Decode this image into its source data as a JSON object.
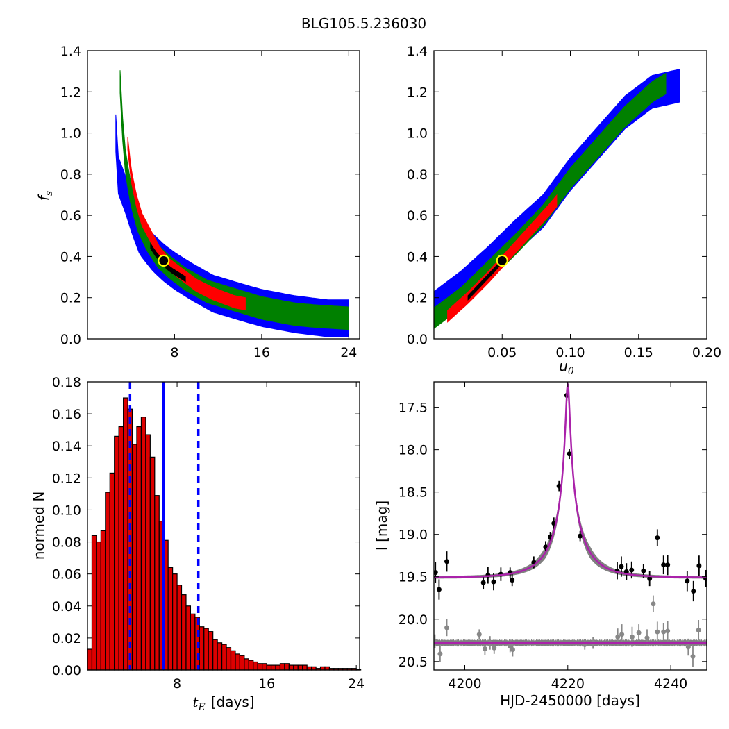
{
  "figure": {
    "title": "BLG105.5.236030"
  },
  "colors": {
    "black_level": "#000000",
    "red_level": "#ff0000",
    "green_level": "#008000",
    "blue_level": "#0000ff",
    "marker_fill": "#000000",
    "marker_edge": "#ffff00",
    "hist_bar": "#dd0000",
    "median_line": "#0000ff",
    "model_line": "#aa22aa",
    "data_primary": "#000000",
    "data_secondary": "#888888",
    "model_band": "#808080"
  },
  "chart_data": [
    {
      "id": "tE_vs_fs",
      "type": "heatmap",
      "xlabel": "",
      "ylabel": "f_s",
      "xlim": [
        0,
        25
      ],
      "ylim": [
        0.0,
        1.4
      ],
      "xticks": [
        "8",
        "16",
        "24"
      ],
      "xtick_values": [
        8,
        16,
        24
      ],
      "yticks": [
        "0.0",
        "0.2",
        "0.4",
        "0.6",
        "0.8",
        "1.0",
        "1.2",
        "1.4"
      ],
      "ytick_values": [
        0.0,
        0.2,
        0.4,
        0.6,
        0.8,
        1.0,
        1.2,
        1.4
      ],
      "best_fit": {
        "x": 7.0,
        "y": 0.38
      },
      "levels": [
        {
          "name": "blue",
          "points": [
            [
              2.6,
              1.0
            ],
            [
              2.8,
              0.8
            ],
            [
              3.5,
              0.7
            ],
            [
              4.1,
              0.6
            ],
            [
              4.8,
              0.5
            ],
            [
              6.0,
              0.42
            ],
            [
              7.0,
              0.37
            ],
            [
              8.0,
              0.33
            ],
            [
              9.5,
              0.28
            ],
            [
              11.5,
              0.22
            ],
            [
              14.0,
              0.18
            ],
            [
              16.0,
              0.15
            ],
            [
              19.0,
              0.12
            ],
            [
              22.0,
              0.1
            ],
            [
              24.0,
              0.1
            ]
          ],
          "width": 0.09
        },
        {
          "name": "green",
          "points": [
            [
              3.0,
              1.25
            ],
            [
              3.1,
              1.1
            ],
            [
              3.5,
              0.85
            ],
            [
              4.0,
              0.7
            ],
            [
              4.6,
              0.58
            ],
            [
              5.5,
              0.48
            ],
            [
              6.5,
              0.4
            ],
            [
              7.5,
              0.35
            ],
            [
              9.0,
              0.29
            ],
            [
              11.0,
              0.23
            ],
            [
              13.5,
              0.19
            ],
            [
              16.0,
              0.15
            ],
            [
              19.0,
              0.12
            ],
            [
              21.0,
              0.11
            ],
            [
              24.0,
              0.1
            ]
          ],
          "width": 0.055
        },
        {
          "name": "red",
          "points": [
            [
              3.7,
              0.95
            ],
            [
              4.0,
              0.8
            ],
            [
              4.5,
              0.67
            ],
            [
              5.0,
              0.58
            ],
            [
              5.8,
              0.5
            ],
            [
              6.6,
              0.42
            ],
            [
              7.5,
              0.36
            ],
            [
              8.5,
              0.32
            ],
            [
              10.0,
              0.26
            ],
            [
              11.5,
              0.22
            ],
            [
              13.5,
              0.18
            ],
            [
              14.5,
              0.17
            ]
          ],
          "width": 0.03
        },
        {
          "name": "black",
          "points": [
            [
              5.8,
              0.45
            ],
            [
              6.3,
              0.41
            ],
            [
              6.8,
              0.38
            ],
            [
              7.3,
              0.35
            ],
            [
              7.8,
              0.33
            ],
            [
              8.4,
              0.31
            ],
            [
              9.0,
              0.29
            ]
          ],
          "width": 0.012
        }
      ]
    },
    {
      "id": "u0_vs_fs",
      "type": "heatmap",
      "xlabel": "u_0",
      "ylabel": "",
      "xlim": [
        0.0,
        0.2
      ],
      "ylim": [
        0.0,
        1.4
      ],
      "xticks": [
        "0.05",
        "0.10",
        "0.15",
        "0.20"
      ],
      "xtick_values": [
        0.05,
        0.1,
        0.15,
        0.2
      ],
      "yticks": [
        "0.0",
        "0.2",
        "0.4",
        "0.6",
        "0.8",
        "1.0",
        "1.2",
        "1.4"
      ],
      "ytick_values": [
        0.0,
        0.2,
        0.4,
        0.6,
        0.8,
        1.0,
        1.2,
        1.4
      ],
      "best_fit": {
        "x": 0.05,
        "y": 0.38
      },
      "levels": [
        {
          "name": "blue",
          "points": [
            [
              0.0,
              0.15
            ],
            [
              0.02,
              0.25
            ],
            [
              0.04,
              0.37
            ],
            [
              0.06,
              0.5
            ],
            [
              0.08,
              0.62
            ],
            [
              0.1,
              0.8
            ],
            [
              0.12,
              0.95
            ],
            [
              0.14,
              1.1
            ],
            [
              0.16,
              1.2
            ],
            [
              0.18,
              1.23
            ]
          ],
          "width": 0.08
        },
        {
          "name": "green",
          "points": [
            [
              0.0,
              0.1
            ],
            [
              0.02,
              0.2
            ],
            [
              0.04,
              0.33
            ],
            [
              0.06,
              0.46
            ],
            [
              0.08,
              0.6
            ],
            [
              0.1,
              0.78
            ],
            [
              0.12,
              0.93
            ],
            [
              0.14,
              1.08
            ],
            [
              0.16,
              1.2
            ],
            [
              0.17,
              1.24
            ]
          ],
          "width": 0.05
        },
        {
          "name": "red",
          "points": [
            [
              0.01,
              0.11
            ],
            [
              0.025,
              0.2
            ],
            [
              0.04,
              0.3
            ],
            [
              0.055,
              0.41
            ],
            [
              0.07,
              0.52
            ],
            [
              0.085,
              0.63
            ],
            [
              0.09,
              0.67
            ]
          ],
          "width": 0.028
        },
        {
          "name": "black",
          "points": [
            [
              0.025,
              0.2
            ],
            [
              0.035,
              0.27
            ],
            [
              0.045,
              0.34
            ],
            [
              0.05,
              0.38
            ]
          ],
          "width": 0.01
        }
      ]
    },
    {
      "id": "tE_histogram",
      "type": "bar",
      "xlabel": "[days]",
      "xlabel_math": "t_E",
      "ylabel": "normed N",
      "xlim": [
        0,
        24.3
      ],
      "ylim": [
        0.0,
        0.18
      ],
      "xticks": [
        "8",
        "16",
        "24"
      ],
      "xtick_values": [
        8,
        16,
        24
      ],
      "yticks": [
        "0.00",
        "0.02",
        "0.04",
        "0.06",
        "0.08",
        "0.10",
        "0.12",
        "0.14",
        "0.16",
        "0.18"
      ],
      "ytick_values": [
        0.0,
        0.02,
        0.04,
        0.06,
        0.08,
        0.1,
        0.12,
        0.14,
        0.16,
        0.18
      ],
      "bin_start": 0.0,
      "bin_width": 0.4,
      "values": [
        0.013,
        0.084,
        0.08,
        0.087,
        0.111,
        0.123,
        0.146,
        0.152,
        0.17,
        0.163,
        0.141,
        0.152,
        0.158,
        0.147,
        0.133,
        0.109,
        0.093,
        0.081,
        0.064,
        0.06,
        0.053,
        0.047,
        0.04,
        0.035,
        0.033,
        0.027,
        0.026,
        0.024,
        0.019,
        0.017,
        0.016,
        0.014,
        0.012,
        0.01,
        0.009,
        0.007,
        0.006,
        0.005,
        0.004,
        0.004,
        0.003,
        0.003,
        0.003,
        0.004,
        0.004,
        0.003,
        0.003,
        0.003,
        0.003,
        0.002,
        0.002,
        0.001,
        0.002,
        0.002,
        0.001,
        0.001,
        0.001,
        0.001,
        0.001,
        0.001,
        0.0005
      ],
      "median": 6.8,
      "interval": [
        3.8,
        9.9
      ]
    },
    {
      "id": "light_curve",
      "type": "scatter",
      "xlabel": "HJD-2450000 [days]",
      "ylabel": "I [mag]",
      "xlim": [
        4194,
        4247
      ],
      "ylim": [
        20.6,
        17.2
      ],
      "y_inverted": true,
      "xticks": [
        "4200",
        "4220",
        "4240"
      ],
      "xtick_values": [
        4200,
        4220,
        4240
      ],
      "yticks": [
        "17.5",
        "18.0",
        "18.5",
        "19.0",
        "19.5",
        "20.0",
        "20.5"
      ],
      "ytick_values": [
        17.5,
        18.0,
        18.5,
        19.0,
        19.5,
        20.0,
        20.5
      ],
      "model": {
        "t0": 4220.0,
        "tE": 7.0,
        "u0": 0.05,
        "fs": 0.38,
        "baseline": 19.51
      },
      "model2_baseline": 20.28,
      "series": [
        {
          "name": "primary",
          "points": [
            [
              4194.3,
              19.45,
              0.12
            ],
            [
              4195.0,
              19.65,
              0.12
            ],
            [
              4196.5,
              19.32,
              0.12
            ],
            [
              4203.6,
              19.57,
              0.08
            ],
            [
              4204.5,
              19.48,
              0.1
            ],
            [
              4205.6,
              19.56,
              0.1
            ],
            [
              4207.0,
              19.47,
              0.08
            ],
            [
              4208.8,
              19.45,
              0.06
            ],
            [
              4209.2,
              19.54,
              0.07
            ],
            [
              4213.4,
              19.33,
              0.07
            ],
            [
              4215.7,
              19.15,
              0.07
            ],
            [
              4216.6,
              19.03,
              0.06
            ],
            [
              4217.3,
              18.87,
              0.07
            ],
            [
              4218.3,
              18.43,
              0.06
            ],
            [
              4219.8,
              17.36,
              0.06
            ],
            [
              4220.3,
              18.05,
              0.06
            ],
            [
              4222.4,
              19.02,
              0.06
            ],
            [
              4229.6,
              19.43,
              0.1
            ],
            [
              4230.4,
              19.38,
              0.12
            ],
            [
              4231.4,
              19.44,
              0.1
            ],
            [
              4232.4,
              19.42,
              0.1
            ],
            [
              4234.7,
              19.43,
              0.08
            ],
            [
              4235.9,
              19.52,
              0.09
            ],
            [
              4237.4,
              19.04,
              0.1
            ],
            [
              4238.6,
              19.36,
              0.11
            ],
            [
              4239.4,
              19.36,
              0.12
            ],
            [
              4243.2,
              19.55,
              0.12
            ],
            [
              4244.4,
              19.67,
              0.12
            ],
            [
              4245.5,
              19.37,
              0.12
            ],
            [
              4246.8,
              19.52,
              0.1
            ]
          ]
        },
        {
          "name": "secondary",
          "points": [
            [
              4194.2,
              20.26,
              0.08
            ],
            [
              4195.2,
              20.41,
              0.1
            ],
            [
              4196.5,
              20.1,
              0.1
            ],
            [
              4202.8,
              20.18,
              0.06
            ],
            [
              4203.9,
              20.35,
              0.07
            ],
            [
              4204.9,
              20.28,
              0.08
            ],
            [
              4205.7,
              20.34,
              0.07
            ],
            [
              4208.8,
              20.32,
              0.07
            ],
            [
              4209.3,
              20.36,
              0.08
            ],
            [
              4223.3,
              20.3,
              0.06
            ],
            [
              4224.9,
              20.28,
              0.07
            ],
            [
              4229.7,
              20.21,
              0.1
            ],
            [
              4230.5,
              20.18,
              0.12
            ],
            [
              4232.5,
              20.21,
              0.12
            ],
            [
              4233.8,
              20.16,
              0.1
            ],
            [
              4235.4,
              20.22,
              0.1
            ],
            [
              4236.6,
              19.82,
              0.1
            ],
            [
              4237.4,
              20.15,
              0.12
            ],
            [
              4238.6,
              20.15,
              0.1
            ],
            [
              4239.4,
              20.14,
              0.12
            ],
            [
              4243.4,
              20.33,
              0.1
            ],
            [
              4244.3,
              20.44,
              0.12
            ],
            [
              4245.4,
              20.13,
              0.12
            ]
          ]
        }
      ]
    }
  ]
}
